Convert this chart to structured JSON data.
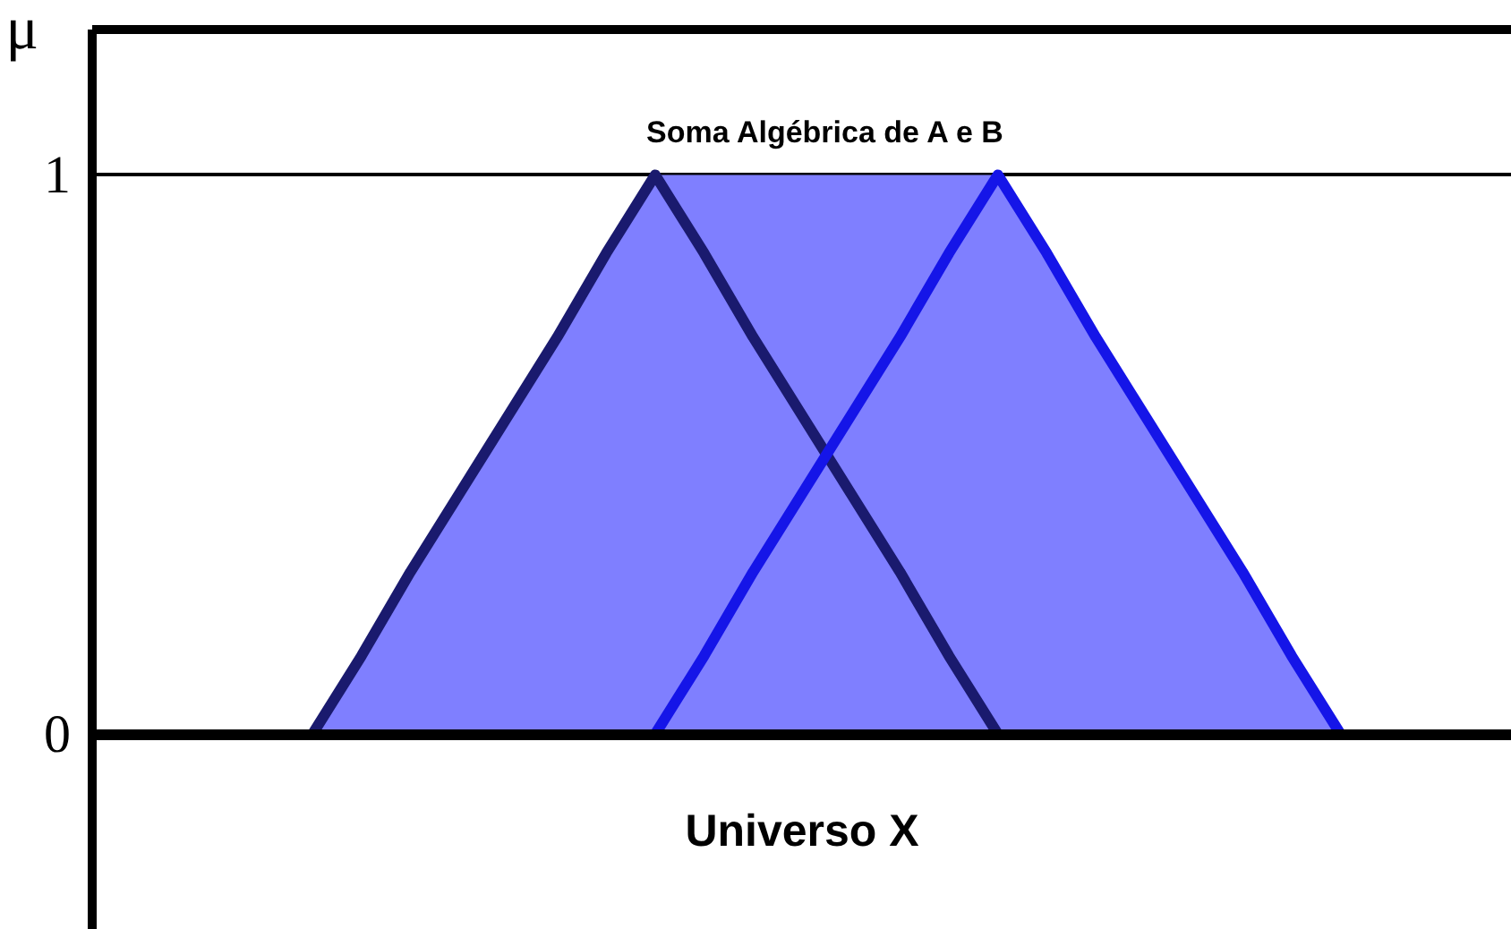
{
  "chart_data": {
    "type": "area",
    "title": "Soma Algébrica de A e B",
    "xlabel": "Universo X",
    "ylabel": "μ",
    "categories": [
      null,
      null,
      null,
      null,
      null,
      null,
      null,
      null,
      null,
      null,
      null,
      null,
      null,
      null,
      null,
      null,
      null,
      null,
      null,
      null,
      null,
      null
    ],
    "ylim": [
      -0.35,
      1.26
    ],
    "yticks": [
      0,
      1
    ],
    "grid": "y",
    "tick_labels": "y",
    "series": [
      {
        "color": "#7f7fff",
        "values": [
          0,
          0.14,
          0.29,
          0.43,
          0.57,
          0.71,
          0.86,
          1,
          1,
          1,
          1,
          1,
          1,
          1,
          1,
          0.86,
          0.71,
          0.57,
          0.43,
          0.29,
          0.14,
          0
        ]
      },
      {
        "type": "line",
        "color": "#1a1a6e",
        "values": [
          0,
          0.14,
          0.29,
          0.43,
          0.57,
          0.71,
          0.86,
          1,
          0.86,
          0.71,
          0.57,
          0.43,
          0.29,
          0.14,
          0,
          null,
          null,
          null,
          null,
          null,
          null,
          null
        ]
      },
      {
        "type": "line",
        "color": "#1515e8",
        "values": [
          null,
          null,
          null,
          null,
          null,
          null,
          null,
          0,
          0.14,
          0.29,
          0.43,
          0.57,
          0.71,
          0.86,
          1,
          0.86,
          0.71,
          0.57,
          0.43,
          0.29,
          0.14,
          0
        ]
      }
    ]
  }
}
